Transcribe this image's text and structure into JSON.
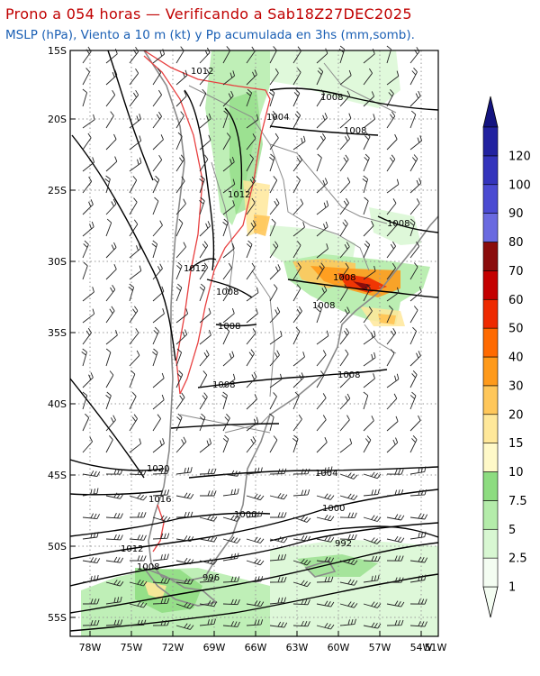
{
  "header": {
    "title": "Prono a 054 horas — Verificando a Sab18Z27DEC2025",
    "subtitle": "MSLP (hPa), Viento a 10 m (kt) y Pp acumulada en 3hs (mm,somb)."
  },
  "map": {
    "lat_labels": [
      "15S",
      "20S",
      "25S",
      "30S",
      "35S",
      "40S",
      "45S",
      "50S",
      "55S"
    ],
    "lon_labels": [
      "78W",
      "75W",
      "72W",
      "69W",
      "66W",
      "63W",
      "60W",
      "57W",
      "54W",
      "51W"
    ],
    "isobar_labels": [
      {
        "text": "1012"
      },
      {
        "text": "1008"
      },
      {
        "text": "1004"
      },
      {
        "text": "1008"
      },
      {
        "text": "1012"
      },
      {
        "text": "1008"
      },
      {
        "text": "1012"
      },
      {
        "text": "1008"
      },
      {
        "text": "1008"
      },
      {
        "text": "1008"
      },
      {
        "text": "1008"
      },
      {
        "text": "1008"
      },
      {
        "text": "1008"
      },
      {
        "text": "1004"
      },
      {
        "text": "1020"
      },
      {
        "text": "1016"
      },
      {
        "text": "1000"
      },
      {
        "text": "1000"
      },
      {
        "text": "992"
      },
      {
        "text": "1012"
      },
      {
        "text": "1008"
      },
      {
        "text": "996"
      }
    ]
  },
  "colorbar": {
    "labels": [
      "1",
      "2.5",
      "5",
      "7.5",
      "10",
      "15",
      "20",
      "30",
      "40",
      "50",
      "60",
      "70",
      "80",
      "90",
      "100",
      "120"
    ],
    "colors": [
      "#f4fdf2",
      "#d8f7d2",
      "#b4ecaa",
      "#8ddc80",
      "#fff9c8",
      "#ffe89a",
      "#ffc75a",
      "#ff9a1a",
      "#ff6a00",
      "#ee2a00",
      "#c40000",
      "#8a0c0c",
      "#6a6ae0",
      "#4b4bd2",
      "#3434bc",
      "#2222a0"
    ],
    "top_color": "#141480"
  }
}
